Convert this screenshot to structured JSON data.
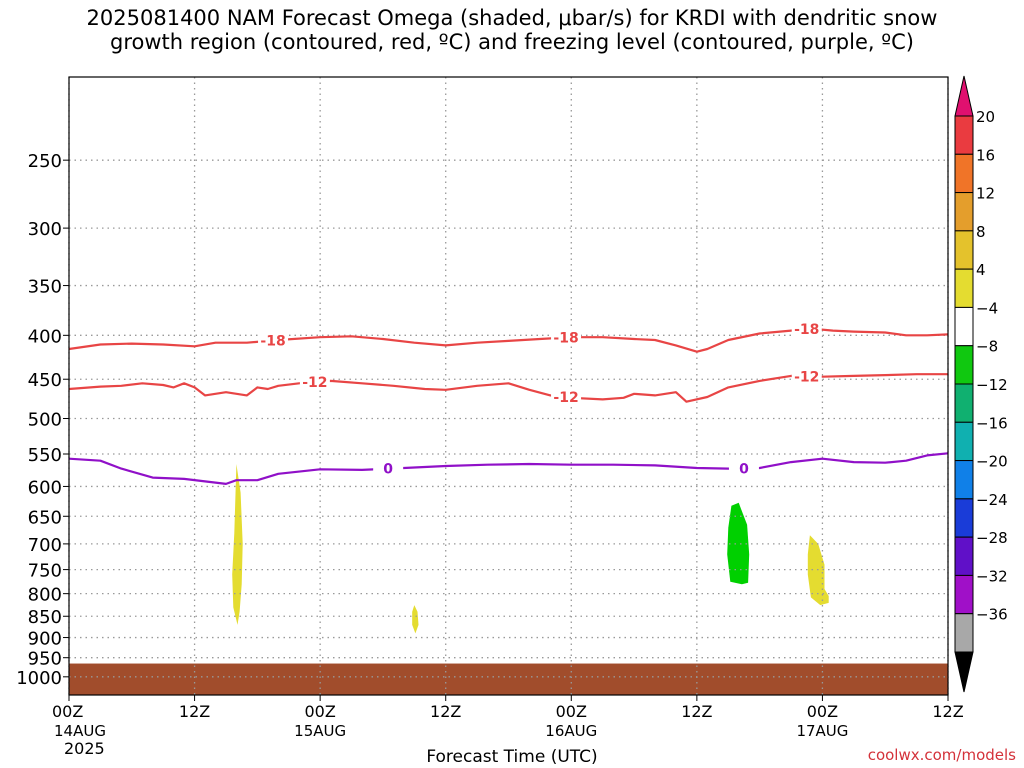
{
  "title": "2025081400 NAM Forecast Omega (shaded, μbar/s) for KRDI with dendritic snow\ngrowth region (contoured, red, ºC) and freezing level (contoured, purple, ºC)",
  "credit": "coolwx.com/models",
  "chart_data": {
    "type": "time-height cross section",
    "xlabel": "Forecast Time (UTC)",
    "ylabel": "",
    "x_range_hours": [
      0,
      84
    ],
    "y_range_hPa": [
      1050,
      200
    ],
    "y_scale": "log-pressure",
    "y_ticks": [
      250,
      300,
      350,
      400,
      450,
      500,
      550,
      600,
      650,
      700,
      750,
      800,
      850,
      900,
      950,
      1000
    ],
    "x_ticks": [
      {
        "hour": 0,
        "label": "00Z",
        "sub": "14AUG",
        "sub2": "2025"
      },
      {
        "hour": 12,
        "label": "12Z",
        "sub": "",
        "sub2": ""
      },
      {
        "hour": 24,
        "label": "00Z",
        "sub": "15AUG",
        "sub2": ""
      },
      {
        "hour": 36,
        "label": "12Z",
        "sub": "",
        "sub2": ""
      },
      {
        "hour": 48,
        "label": "00Z",
        "sub": "16AUG",
        "sub2": ""
      },
      {
        "hour": 60,
        "label": "12Z",
        "sub": "",
        "sub2": ""
      },
      {
        "hour": 72,
        "label": "00Z",
        "sub": "17AUG",
        "sub2": ""
      },
      {
        "hour": 84,
        "label": "12Z",
        "sub": "",
        "sub2": ""
      }
    ],
    "grid": true,
    "colorbar": {
      "placement": "right",
      "levels": [
        "20",
        "16",
        "12",
        "8",
        "4",
        "−4",
        "−8",
        "−12",
        "−16",
        "−20",
        "−24",
        "−28",
        "−32",
        "−36"
      ],
      "colors": [
        "#ea3b40",
        "#f07428",
        "#e49e2c",
        "#e4c22c",
        "#e4dc30",
        "#ffffff",
        "#10c810",
        "#10b070",
        "#10b0b0",
        "#1080e8",
        "#1a3cd8",
        "#6010c8",
        "#a010c8",
        "#a8a8a8"
      ],
      "top_arrow_color": "#e0106f",
      "bottom_arrow_color": "#000000"
    },
    "terrain": {
      "color": "#a14d2c",
      "pressure_top_hPa": 965
    },
    "contours": [
      {
        "label": "-18",
        "color": "#e84545",
        "label_hours": [
          19.5,
          47.5,
          70.5
        ],
        "points": [
          [
            0,
            415
          ],
          [
            3,
            410
          ],
          [
            6,
            409
          ],
          [
            9,
            410
          ],
          [
            12,
            412
          ],
          [
            14,
            408
          ],
          [
            17,
            408
          ],
          [
            20,
            405
          ],
          [
            24,
            402
          ],
          [
            27,
            401
          ],
          [
            30,
            404
          ],
          [
            33,
            408
          ],
          [
            36,
            411
          ],
          [
            39,
            408
          ],
          [
            42,
            406
          ],
          [
            45,
            404
          ],
          [
            48,
            402
          ],
          [
            51,
            402
          ],
          [
            54,
            404
          ],
          [
            56,
            405
          ],
          [
            58,
            411
          ],
          [
            60,
            418
          ],
          [
            61,
            415
          ],
          [
            63,
            405
          ],
          [
            66,
            398
          ],
          [
            69,
            395
          ],
          [
            71,
            393
          ],
          [
            73,
            395
          ],
          [
            75,
            396
          ],
          [
            78,
            397
          ],
          [
            80,
            400
          ],
          [
            82,
            400
          ],
          [
            84,
            399
          ]
        ]
      },
      {
        "label": "-12",
        "color": "#e84545",
        "label_hours": [
          23.5,
          47.5,
          70.5
        ],
        "points": [
          [
            0,
            462
          ],
          [
            3,
            459
          ],
          [
            5,
            458
          ],
          [
            7,
            455
          ],
          [
            9,
            457
          ],
          [
            10,
            460
          ],
          [
            11,
            455
          ],
          [
            12,
            460
          ],
          [
            13,
            470
          ],
          [
            15,
            466
          ],
          [
            17,
            470
          ],
          [
            18,
            460
          ],
          [
            19,
            462
          ],
          [
            20,
            458
          ],
          [
            22,
            455
          ],
          [
            25,
            452
          ],
          [
            28,
            455
          ],
          [
            31,
            458
          ],
          [
            34,
            462
          ],
          [
            36,
            463
          ],
          [
            39,
            458
          ],
          [
            42,
            455
          ],
          [
            44,
            463
          ],
          [
            46,
            470
          ],
          [
            48,
            473
          ],
          [
            51,
            475
          ],
          [
            53,
            473
          ],
          [
            54,
            468
          ],
          [
            56,
            470
          ],
          [
            58,
            466
          ],
          [
            59,
            478
          ],
          [
            61,
            472
          ],
          [
            63,
            460
          ],
          [
            66,
            452
          ],
          [
            69,
            446
          ],
          [
            72,
            447
          ],
          [
            75,
            446
          ],
          [
            78,
            445
          ],
          [
            81,
            444
          ],
          [
            84,
            444
          ]
        ]
      },
      {
        "label": "0",
        "color": "#9010c8",
        "label_hours": [
          30.5,
          64.5
        ],
        "points": [
          [
            0,
            557
          ],
          [
            3,
            560
          ],
          [
            5,
            572
          ],
          [
            8,
            586
          ],
          [
            11,
            588
          ],
          [
            13,
            592
          ],
          [
            15,
            596
          ],
          [
            16,
            590
          ],
          [
            18,
            590
          ],
          [
            20,
            580
          ],
          [
            24,
            573
          ],
          [
            28,
            574
          ],
          [
            32,
            571
          ],
          [
            36,
            568
          ],
          [
            40,
            566
          ],
          [
            44,
            565
          ],
          [
            48,
            566
          ],
          [
            52,
            566
          ],
          [
            56,
            567
          ],
          [
            60,
            571
          ],
          [
            63,
            572
          ],
          [
            66,
            571
          ],
          [
            69,
            562
          ],
          [
            72,
            557
          ],
          [
            75,
            562
          ],
          [
            78,
            563
          ],
          [
            80,
            560
          ],
          [
            82,
            552
          ],
          [
            84,
            549
          ]
        ]
      }
    ],
    "omega_regions": [
      {
        "color": "#e4dc30",
        "points": [
          [
            16.0,
            565
          ],
          [
            16.4,
            610
          ],
          [
            16.6,
            700
          ],
          [
            16.5,
            780
          ],
          [
            16.3,
            840
          ],
          [
            16.1,
            870
          ],
          [
            15.7,
            830
          ],
          [
            15.6,
            760
          ],
          [
            15.8,
            680
          ]
        ]
      },
      {
        "color": "#e4dc30",
        "points": [
          [
            33.0,
            825
          ],
          [
            33.3,
            840
          ],
          [
            33.4,
            870
          ],
          [
            33.1,
            890
          ],
          [
            32.8,
            870
          ],
          [
            32.8,
            840
          ]
        ]
      },
      {
        "color": "#00d000",
        "points": [
          [
            63.3,
            632
          ],
          [
            64.0,
            627
          ],
          [
            64.8,
            665
          ],
          [
            65.0,
            720
          ],
          [
            64.9,
            777
          ],
          [
            64.3,
            780
          ],
          [
            63.2,
            775
          ],
          [
            62.9,
            720
          ],
          [
            63.0,
            670
          ]
        ]
      },
      {
        "color": "#e4dc30",
        "points": [
          [
            70.8,
            684
          ],
          [
            71.6,
            700
          ],
          [
            72.2,
            740
          ],
          [
            72.2,
            790
          ],
          [
            72.6,
            805
          ],
          [
            72.6,
            820
          ],
          [
            71.8,
            825
          ],
          [
            70.9,
            808
          ],
          [
            70.6,
            760
          ],
          [
            70.6,
            720
          ]
        ]
      }
    ]
  }
}
